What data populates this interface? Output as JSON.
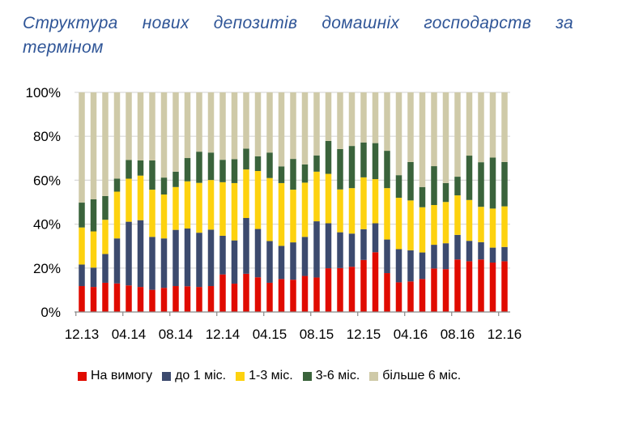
{
  "chart_data": {
    "type": "bar",
    "stacked": true,
    "title": "Структура нових депозитів домашніх господарств за терміном",
    "xlabel": "",
    "ylabel": "",
    "ylim": [
      0,
      100
    ],
    "y_ticks": [
      "0%",
      "20%",
      "40%",
      "60%",
      "80%",
      "100%"
    ],
    "x_tick_labels": [
      "12.13",
      "04.14",
      "08.14",
      "12.14",
      "04.15",
      "08.15",
      "12.15",
      "04.16",
      "08.16",
      "12.16"
    ],
    "categories": [
      "12.13",
      "01.14",
      "02.14",
      "03.14",
      "04.14",
      "05.14",
      "06.14",
      "07.14",
      "08.14",
      "09.14",
      "10.14",
      "11.14",
      "12.14",
      "01.15",
      "02.15",
      "03.15",
      "04.15",
      "05.15",
      "06.15",
      "07.15",
      "08.15",
      "09.15",
      "10.15",
      "11.15",
      "12.15",
      "01.16",
      "02.16",
      "03.16",
      "04.16",
      "05.16",
      "06.16",
      "07.16",
      "08.16",
      "09.16",
      "10.16",
      "11.16",
      "12.16"
    ],
    "grid": true,
    "legend_position": "bottom",
    "series": [
      {
        "name": "На вимогу",
        "color": "#E00B00",
        "values": [
          11.8,
          11.4,
          13.3,
          13.0,
          12.1,
          11.4,
          10.1,
          11.0,
          11.8,
          11.7,
          11.4,
          11.8,
          17.1,
          12.9,
          17.4,
          15.8,
          13.3,
          15.0,
          14.7,
          16.4,
          15.7,
          19.9,
          20.0,
          20.6,
          23.7,
          27.2,
          17.7,
          13.5,
          13.9,
          15.0,
          19.8,
          19.5,
          23.9,
          23.1,
          23.9,
          22.5,
          23.1
        ]
      },
      {
        "name": "до 1 міс.",
        "color": "#3C4A6E",
        "values": [
          9.8,
          8.8,
          13.1,
          20.5,
          29.0,
          30.4,
          24.1,
          22.5,
          25.6,
          26.3,
          24.7,
          25.7,
          17.6,
          19.7,
          25.4,
          22.0,
          19.0,
          15.1,
          17.0,
          17.8,
          25.6,
          20.5,
          16.3,
          15.1,
          14.0,
          13.2,
          15.3,
          15.1,
          14.2,
          12.1,
          10.8,
          11.8,
          11.2,
          9.3,
          7.9,
          6.8,
          6.5
        ]
      },
      {
        "name": "1-3 міс.",
        "color": "#FDD20F",
        "values": [
          16.9,
          16.5,
          15.6,
          21.3,
          19.6,
          20.3,
          21.5,
          20.0,
          19.5,
          21.5,
          22.7,
          22.6,
          24.4,
          26.1,
          22.1,
          26.4,
          28.7,
          28.6,
          24.0,
          24.7,
          22.6,
          22.5,
          19.5,
          20.7,
          23.6,
          20.1,
          23.4,
          23.4,
          22.7,
          20.6,
          18.1,
          18.8,
          18.0,
          18.6,
          16.1,
          17.8,
          18.5
        ]
      },
      {
        "name": "3-6 міс.",
        "color": "#3A633B",
        "values": [
          11.3,
          14.6,
          10.8,
          5.9,
          8.5,
          6.9,
          13.3,
          7.7,
          7.0,
          10.6,
          14.2,
          12.5,
          10.2,
          10.9,
          9.5,
          6.7,
          11.6,
          7.6,
          14.0,
          8.3,
          7.4,
          15.0,
          18.4,
          19.2,
          15.9,
          16.4,
          17.0,
          10.3,
          17.5,
          9.2,
          17.7,
          8.6,
          8.5,
          20.2,
          20.3,
          23.2,
          20.2
        ]
      },
      {
        "name": "більше 6 міс.",
        "color": "#CFCAA8",
        "values": [
          50.2,
          48.7,
          47.2,
          39.3,
          30.8,
          31.0,
          31.0,
          38.8,
          36.1,
          29.9,
          27.0,
          27.4,
          30.7,
          30.4,
          25.6,
          29.1,
          27.4,
          33.7,
          30.3,
          32.8,
          28.7,
          22.1,
          25.8,
          24.4,
          22.8,
          23.1,
          26.6,
          37.7,
          31.7,
          43.1,
          33.6,
          41.3,
          38.4,
          28.8,
          31.8,
          29.7,
          31.7
        ]
      }
    ]
  }
}
